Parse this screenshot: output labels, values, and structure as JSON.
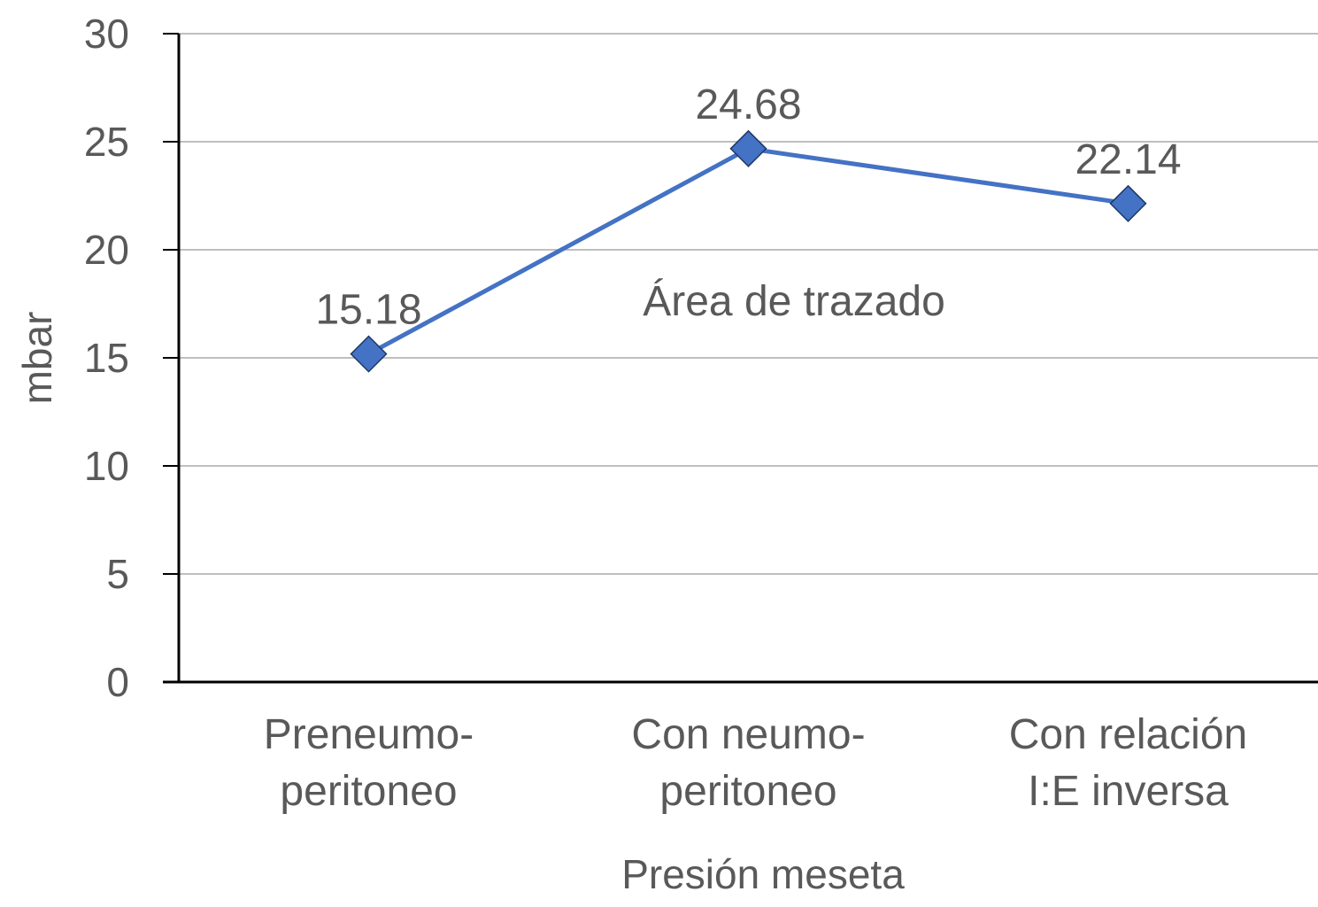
{
  "chart_data": {
    "type": "line",
    "categories": [
      [
        "Preneumo-",
        "peritoneo"
      ],
      [
        "Con neumo-",
        "peritoneo"
      ],
      [
        "Con relación",
        "I:E inversa"
      ]
    ],
    "series": [
      {
        "values": [
          15.18,
          24.68,
          22.14
        ],
        "data_labels": [
          "15.18",
          "24.68",
          "22.14"
        ],
        "color": "#4472C4",
        "marker": "diamond"
      }
    ],
    "xlabel": "Presión meseta",
    "ylabel": "mbar",
    "ylim": [
      0,
      30
    ],
    "yticks": [
      "0",
      "5",
      "10",
      "15",
      "20",
      "25",
      "30"
    ],
    "annotation": "Área de trazado",
    "grid": true,
    "gridline_color": "#BFBFBF",
    "axis_color": "#000000",
    "text_color": "#595959"
  }
}
